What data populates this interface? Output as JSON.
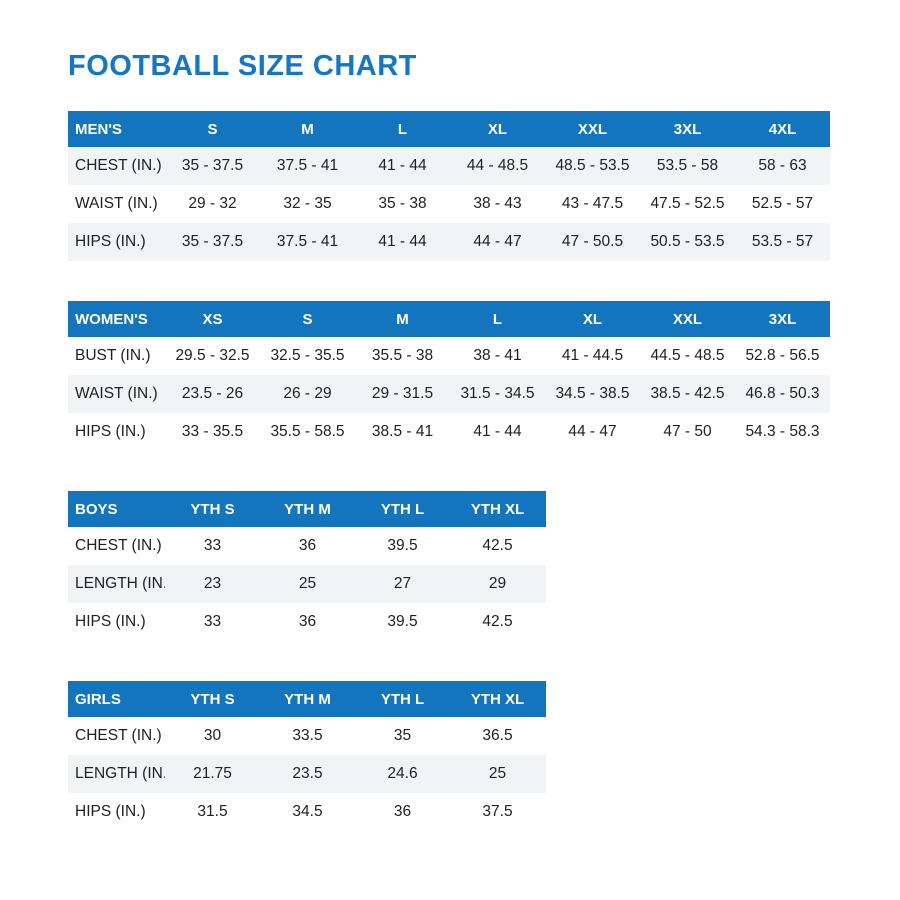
{
  "page": {
    "title": "FOOTBALL SIZE CHART",
    "title_color": "#1476c6",
    "header_bg": "#1375bd",
    "shaded_row_bg": "#f2f3f4"
  },
  "tables": [
    {
      "name": "mens",
      "header_label": "MEN'S",
      "columns": [
        "S",
        "M",
        "L",
        "XL",
        "XXL",
        "3XL",
        "4XL"
      ],
      "rows": [
        {
          "label": "CHEST (IN.)",
          "shaded": true,
          "values": [
            "35 - 37.5",
            "37.5 - 41",
            "41 - 44",
            "44 - 48.5",
            "48.5 - 53.5",
            "53.5 - 58",
            "58 - 63"
          ]
        },
        {
          "label": "WAIST (IN.)",
          "shaded": false,
          "values": [
            "29 - 32",
            "32 - 35",
            "35 - 38",
            "38 - 43",
            "43 - 47.5",
            "47.5 - 52.5",
            "52.5 - 57"
          ]
        },
        {
          "label": "HIPS (IN.)",
          "shaded": true,
          "values": [
            "35 - 37.5",
            "37.5 - 41",
            "41 - 44",
            "44 - 47",
            "47 - 50.5",
            "50.5 - 53.5",
            "53.5 - 57"
          ]
        }
      ]
    },
    {
      "name": "womens",
      "header_label": "WOMEN'S",
      "columns": [
        "XS",
        "S",
        "M",
        "L",
        "XL",
        "XXL",
        "3XL"
      ],
      "rows": [
        {
          "label": "BUST (IN.)",
          "shaded": false,
          "values": [
            "29.5 - 32.5",
            "32.5 - 35.5",
            "35.5 - 38",
            "38 - 41",
            "41 - 44.5",
            "44.5 - 48.5",
            "52.8 - 56.5"
          ]
        },
        {
          "label": "WAIST (IN.)",
          "shaded": true,
          "values": [
            "23.5 - 26",
            "26 - 29",
            "29 - 31.5",
            "31.5 - 34.5",
            "34.5 - 38.5",
            "38.5 - 42.5",
            "46.8 - 50.3"
          ]
        },
        {
          "label": "HIPS (IN.)",
          "shaded": false,
          "values": [
            "33 - 35.5",
            "35.5 - 58.5",
            "38.5 - 41",
            "41 - 44",
            "44 - 47",
            "47 - 50",
            "54.3 - 58.3"
          ]
        }
      ]
    },
    {
      "name": "boys",
      "header_label": "BOYS",
      "columns": [
        "YTH S",
        "YTH M",
        "YTH L",
        "YTH XL"
      ],
      "rows": [
        {
          "label": "CHEST (IN.)",
          "shaded": false,
          "values": [
            "33",
            "36",
            "39.5",
            "42.5"
          ]
        },
        {
          "label": "LENGTH (IN.)",
          "shaded": true,
          "values": [
            "23",
            "25",
            "27",
            "29"
          ]
        },
        {
          "label": "HIPS (IN.)",
          "shaded": false,
          "values": [
            "33",
            "36",
            "39.5",
            "42.5"
          ]
        }
      ]
    },
    {
      "name": "girls",
      "header_label": "GIRLS",
      "columns": [
        "YTH S",
        "YTH M",
        "YTH L",
        "YTH XL"
      ],
      "rows": [
        {
          "label": "CHEST (IN.)",
          "shaded": false,
          "values": [
            "30",
            "33.5",
            "35",
            "36.5"
          ]
        },
        {
          "label": "LENGTH (IN.)",
          "shaded": true,
          "values": [
            "21.75",
            "23.5",
            "24.6",
            "25"
          ]
        },
        {
          "label": "HIPS (IN.)",
          "shaded": false,
          "values": [
            "31.5",
            "34.5",
            "36",
            "37.5"
          ]
        }
      ]
    }
  ]
}
